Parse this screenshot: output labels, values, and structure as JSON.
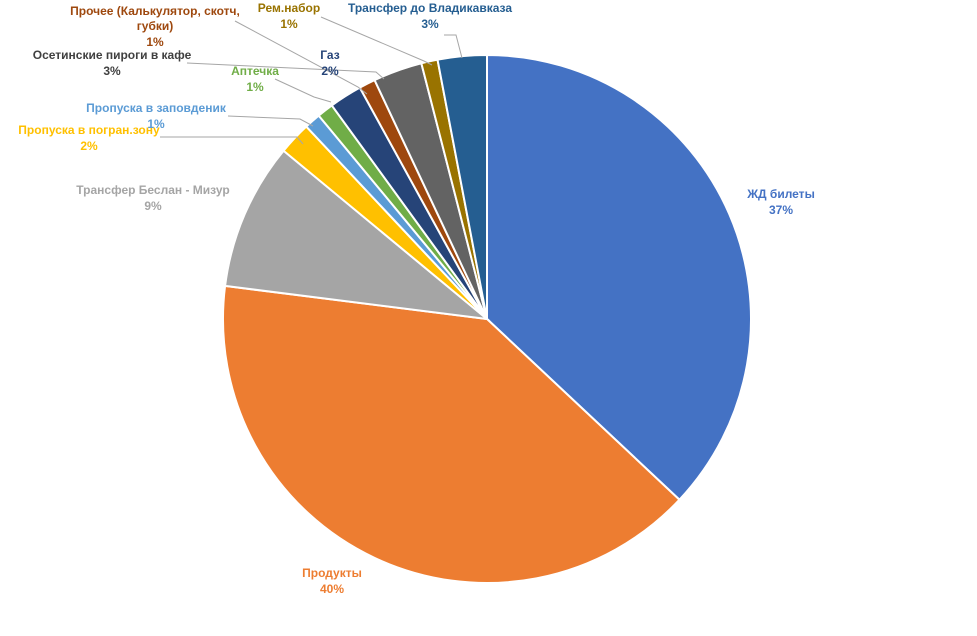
{
  "chart_data": {
    "type": "pie",
    "title": "",
    "slices": [
      {
        "label": "ЖД билеты",
        "pct_label": "37%",
        "value": 37,
        "color": "#4472C4"
      },
      {
        "label": "Продукты",
        "pct_label": "40%",
        "value": 40,
        "color": "#ED7D31"
      },
      {
        "label": "Трансфер Беслан - Мизур",
        "pct_label": "9%",
        "value": 9,
        "color": "#A5A5A5"
      },
      {
        "label": "Пропуска в погран.зону",
        "pct_label": "2%",
        "value": 2,
        "color": "#FFC000"
      },
      {
        "label": "Пропуска в заповденик",
        "pct_label": "1%",
        "value": 1,
        "color": "#5B9BD5"
      },
      {
        "label": "Аптечка",
        "pct_label": "1%",
        "value": 1,
        "color": "#70AD47"
      },
      {
        "label": "Газ",
        "pct_label": "2%",
        "value": 2,
        "color": "#264478"
      },
      {
        "label": "Прочее (Калькулятор, скотч, губки)",
        "pct_label": "1%",
        "value": 1,
        "color": "#9E480E"
      },
      {
        "label": "Осетинские пироги в кафе",
        "pct_label": "3%",
        "value": 3,
        "color": "#636363"
      },
      {
        "label": "Рем.набор",
        "pct_label": "1%",
        "value": 1,
        "color": "#997300"
      },
      {
        "label": "Трансфер до Владикавказа",
        "pct_label": "3%",
        "value": 3,
        "color": "#255E91"
      }
    ]
  }
}
